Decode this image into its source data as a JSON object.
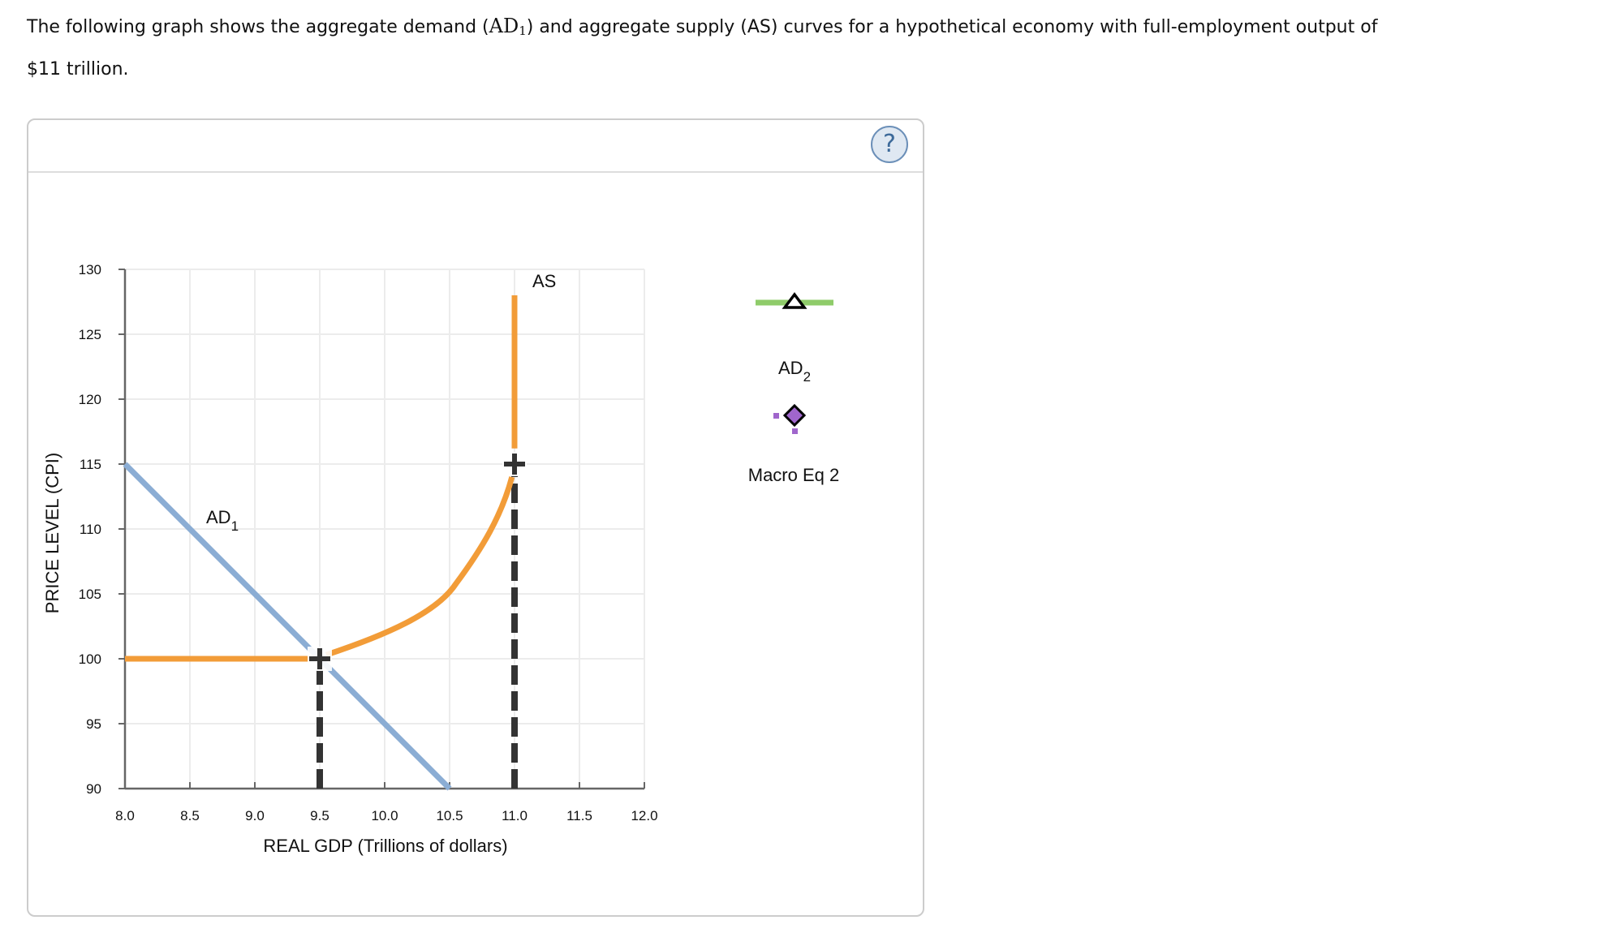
{
  "question": {
    "line1_pre": "The following graph shows the aggregate demand (",
    "ad_symbol": "AD",
    "ad_subscript": "1",
    "line1_post": ") and aggregate supply (AS) curves for a hypothetical economy with full-employment output of",
    "line2": "$11 trillion."
  },
  "panel": {
    "help_icon": "?",
    "help_icon_name": "help-icon"
  },
  "legend": {
    "items": [
      {
        "label": "AD",
        "subscript": "2",
        "icon": "green-line-triangle-icon",
        "color": "#8fcc6a"
      },
      {
        "label": "Macro Eq 2",
        "icon": "purple-diamond-icon",
        "color": "#a066cc"
      }
    ]
  },
  "chart_data": {
    "type": "line",
    "title": "",
    "xlabel": "REAL GDP (Trillions of dollars)",
    "ylabel": "PRICE LEVEL (CPI)",
    "xlim": [
      8.0,
      12.0
    ],
    "ylim": [
      90,
      130
    ],
    "xticks": [
      "8.0",
      "8.5",
      "9.0",
      "9.5",
      "10.0",
      "10.5",
      "11.0",
      "11.5",
      "12.0"
    ],
    "yticks": [
      "90",
      "95",
      "100",
      "105",
      "110",
      "115",
      "120",
      "125",
      "130"
    ],
    "grid": true,
    "legend_position": "right",
    "series": [
      {
        "name": "AD1",
        "label": "AD",
        "label_subscript": "1",
        "color": "#8badd4",
        "points": [
          [
            8.0,
            115
          ],
          [
            10.5,
            90
          ]
        ]
      },
      {
        "name": "AS",
        "label": "AS",
        "color": "#f29c38",
        "points": [
          [
            8.0,
            100
          ],
          [
            9.5,
            100
          ],
          [
            10.0,
            102.1
          ],
          [
            10.5,
            105.1
          ],
          [
            10.75,
            108.5
          ],
          [
            11.0,
            114
          ],
          [
            11.0,
            116.2
          ],
          [
            11.0,
            128
          ]
        ]
      }
    ],
    "markers": [
      {
        "name": "equilibrium-1",
        "x": 9.5,
        "y": 100,
        "shape": "plus",
        "color": "#333333"
      },
      {
        "name": "full-employment-point",
        "x": 11.0,
        "y": 115,
        "shape": "plus",
        "color": "#333333"
      }
    ],
    "dashed_lines": [
      {
        "x": 9.5,
        "from_y": 90,
        "to_y": 100,
        "color": "#333333"
      },
      {
        "x": 11.0,
        "from_y": 90,
        "to_y": 115,
        "color": "#333333"
      }
    ]
  }
}
